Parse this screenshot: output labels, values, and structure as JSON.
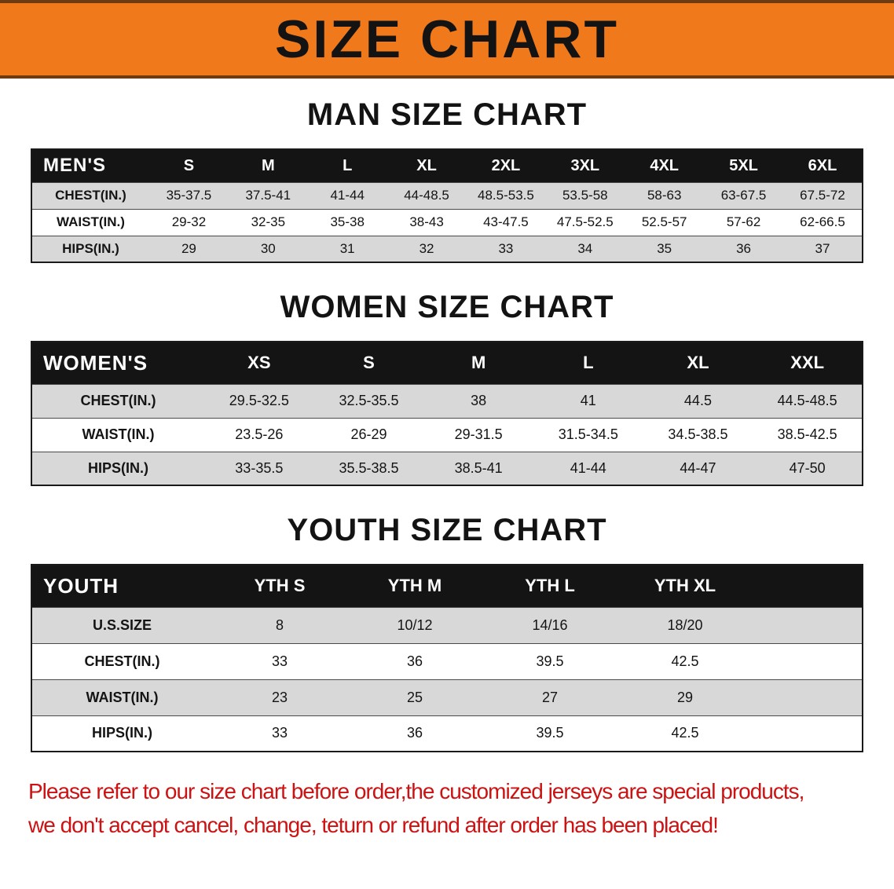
{
  "banner": {
    "title": "SIZE CHART"
  },
  "sections": [
    {
      "heading": "MAN SIZE CHART",
      "table": {
        "corner": "MEN'S",
        "columns": [
          "S",
          "M",
          "L",
          "XL",
          "2XL",
          "3XL",
          "4XL",
          "5XL",
          "6XL"
        ],
        "rows": [
          {
            "label": "CHEST(IN.)",
            "values": [
              "35-37.5",
              "37.5-41",
              "41-44",
              "44-48.5",
              "48.5-53.5",
              "53.5-58",
              "58-63",
              "63-67.5",
              "67.5-72"
            ]
          },
          {
            "label": "WAIST(IN.)",
            "values": [
              "29-32",
              "32-35",
              "35-38",
              "38-43",
              "43-47.5",
              "47.5-52.5",
              "52.5-57",
              "57-62",
              "62-66.5"
            ]
          },
          {
            "label": "HIPS(IN.)",
            "values": [
              "29",
              "30",
              "31",
              "32",
              "33",
              "34",
              "35",
              "36",
              "37"
            ]
          }
        ]
      }
    },
    {
      "heading": "WOMEN SIZE CHART",
      "table": {
        "corner": "WOMEN'S",
        "columns": [
          "XS",
          "S",
          "M",
          "L",
          "XL",
          "XXL"
        ],
        "rows": [
          {
            "label": "CHEST(IN.)",
            "values": [
              "29.5-32.5",
              "32.5-35.5",
              "38",
              "41",
              "44.5",
              "44.5-48.5"
            ]
          },
          {
            "label": "WAIST(IN.)",
            "values": [
              "23.5-26",
              "26-29",
              "29-31.5",
              "31.5-34.5",
              "34.5-38.5",
              "38.5-42.5"
            ]
          },
          {
            "label": "HIPS(IN.)",
            "values": [
              "33-35.5",
              "35.5-38.5",
              "38.5-41",
              "41-44",
              "44-47",
              "47-50"
            ]
          }
        ]
      }
    },
    {
      "heading": "YOUTH SIZE CHART",
      "table": {
        "corner": "YOUTH",
        "columns": [
          "YTH S",
          "YTH M",
          "YTH L",
          "YTH XL"
        ],
        "rows": [
          {
            "label": "U.S.SIZE",
            "values": [
              "8",
              "10/12",
              "14/16",
              "18/20"
            ]
          },
          {
            "label": "CHEST(IN.)",
            "values": [
              "33",
              "36",
              "39.5",
              "42.5"
            ]
          },
          {
            "label": "WAIST(IN.)",
            "values": [
              "23",
              "25",
              "27",
              "29"
            ]
          },
          {
            "label": "HIPS(IN.)",
            "values": [
              "33",
              "36",
              "39.5",
              "42.5"
            ]
          }
        ]
      }
    }
  ],
  "footer": {
    "line1": "Please refer to our size chart before order,the customized jerseys are special products,",
    "line2": "we don't accept cancel, change, teturn or refund after order has been placed!"
  },
  "colors": {
    "accent-orange": "#f0791b",
    "banner-edge": "#703a10",
    "header-black": "#141414",
    "stripe-gray": "#d8d8d8",
    "warning-red": "#cc1212"
  }
}
